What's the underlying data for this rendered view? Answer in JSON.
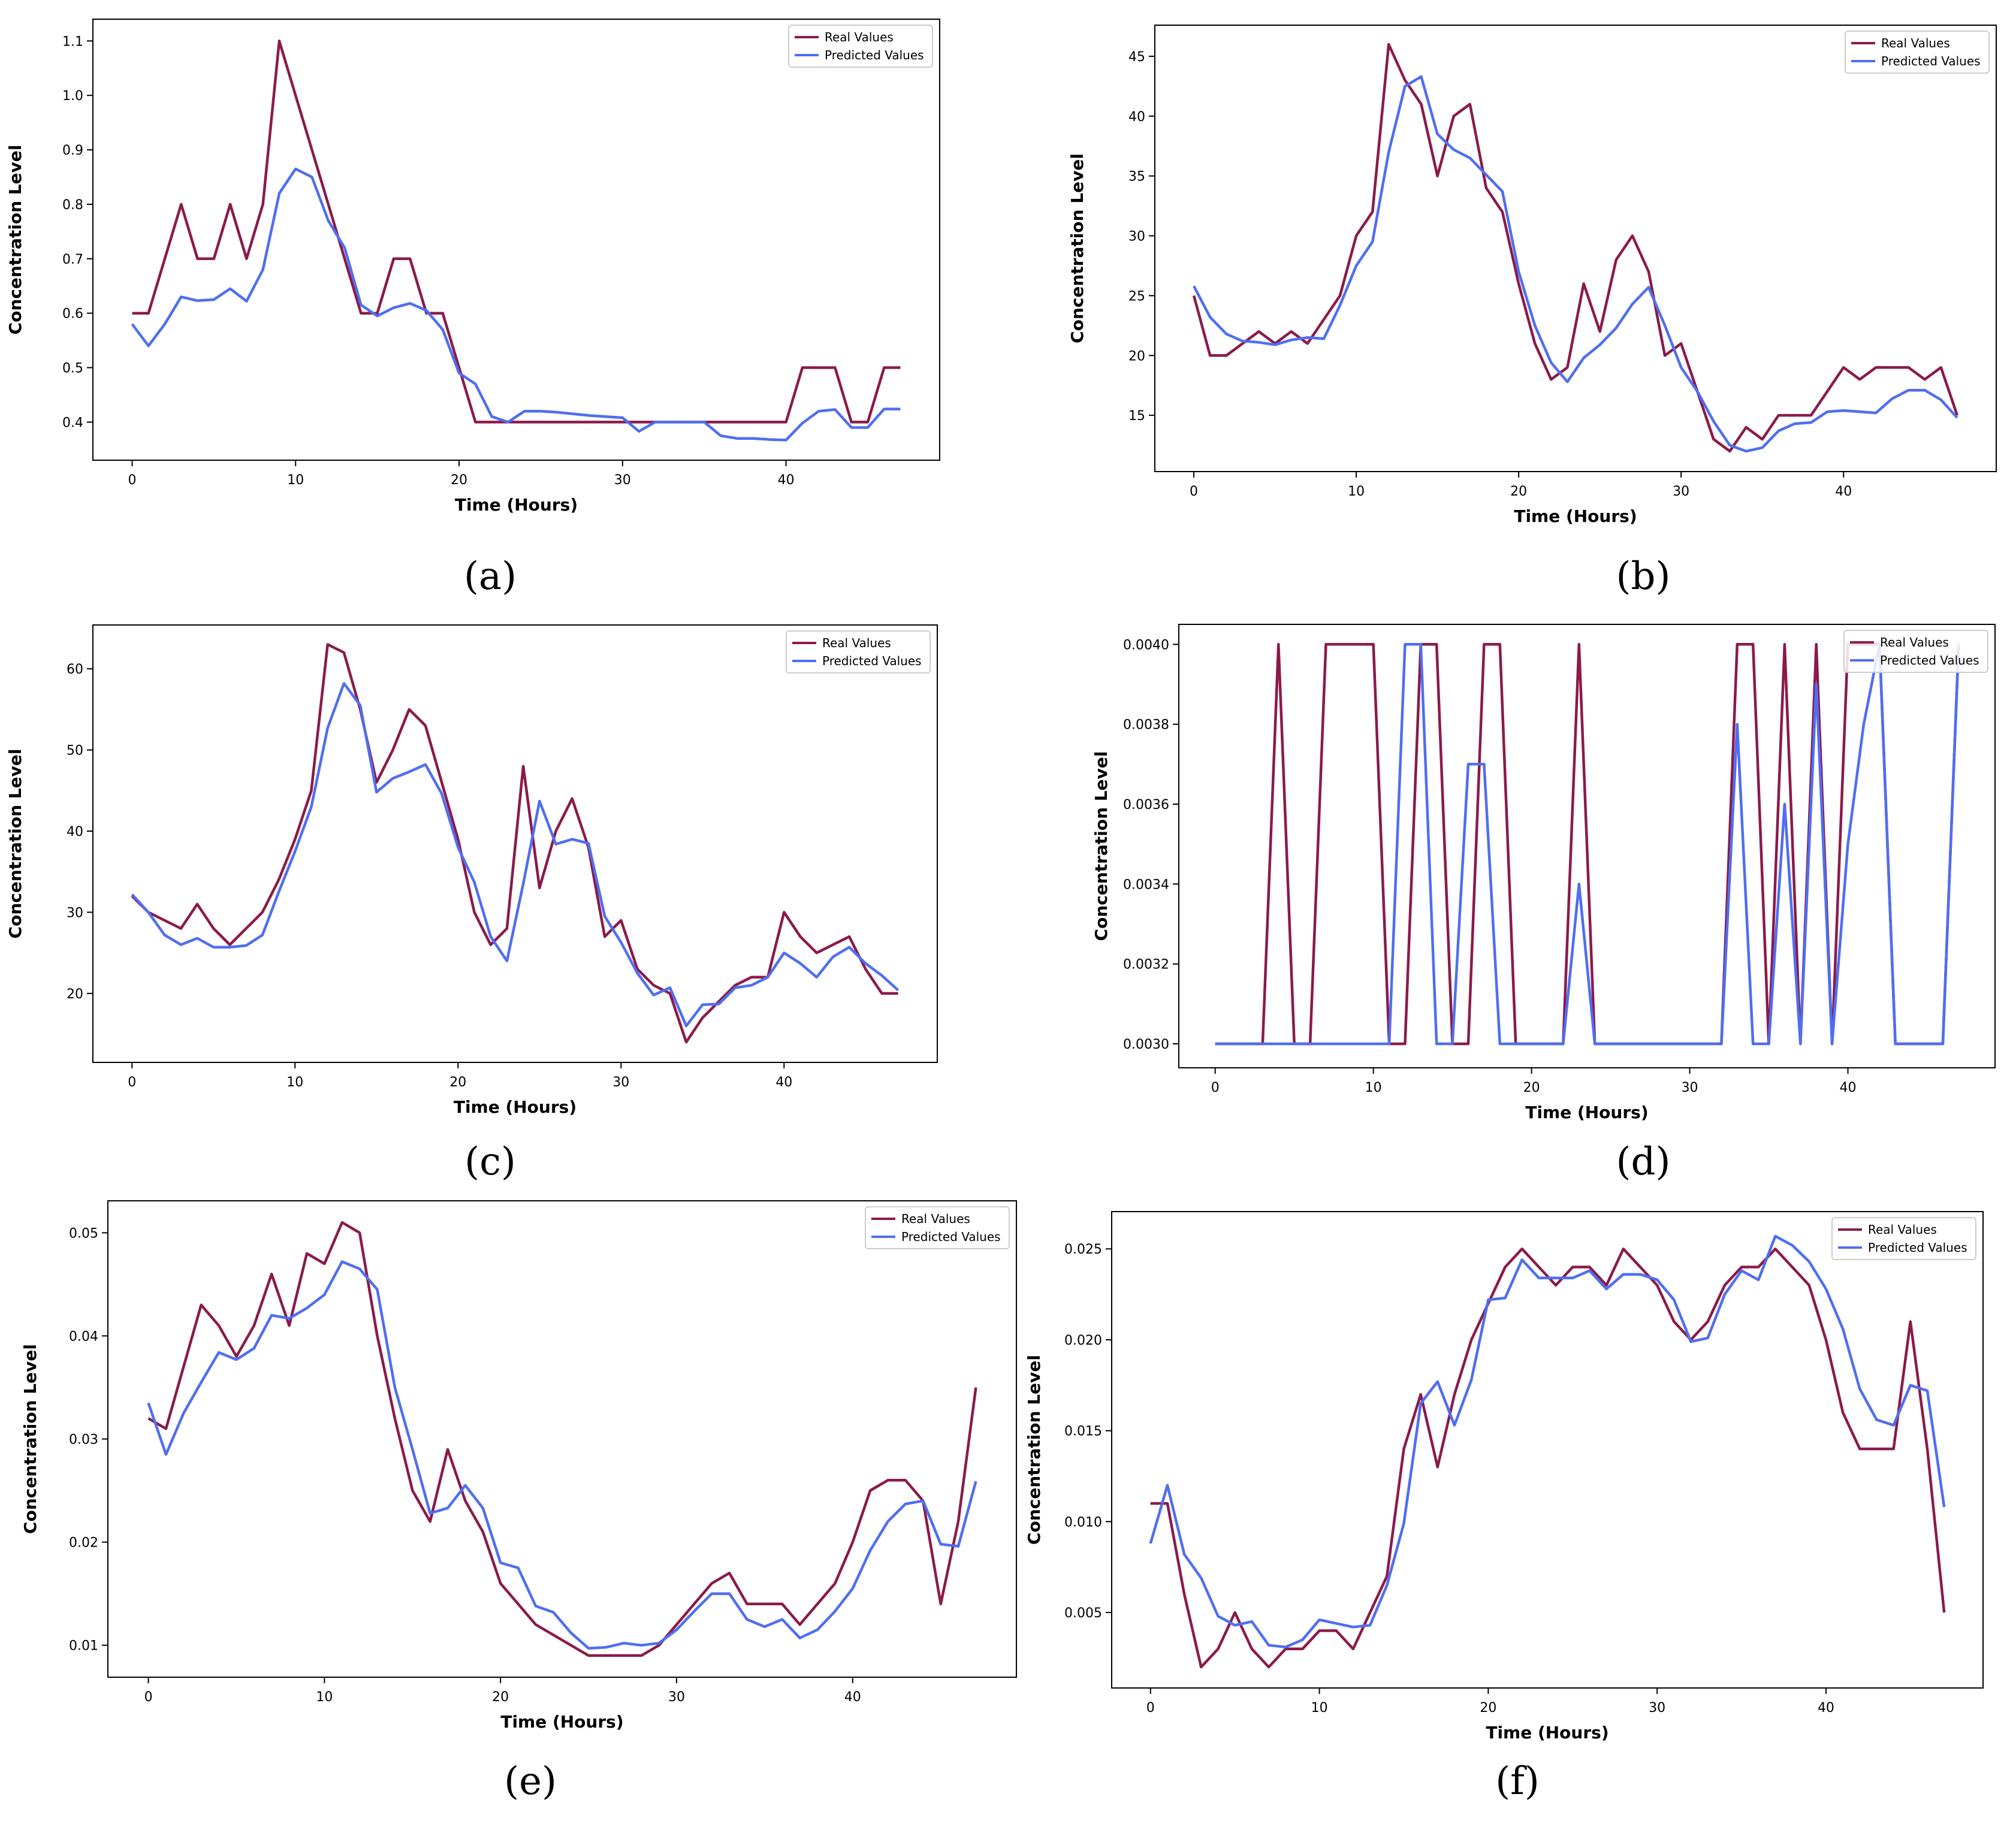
{
  "colors": {
    "real": "#8B1A4A",
    "predicted": "#4F6EF2",
    "axis": "#000000",
    "legend_border": "#cccccc"
  },
  "chart_data": [
    {
      "panel": "a",
      "caption": "(a)",
      "type": "line",
      "xlabel": "Time (Hours)",
      "ylabel": "Concentration Level",
      "xlim": [
        -2.4,
        49.4
      ],
      "ylim": [
        0.33,
        1.14
      ],
      "xticks": [
        0,
        10,
        20,
        30,
        40
      ],
      "xtick_labels": [
        "0",
        "10",
        "20",
        "30",
        "40"
      ],
      "yticks": [
        0.4,
        0.5,
        0.6,
        0.7,
        0.8,
        0.9,
        1.0,
        1.1
      ],
      "ytick_labels": [
        "0.4",
        "0.5",
        "0.6",
        "0.7",
        "0.8",
        "0.9",
        "1.0",
        "1.1"
      ],
      "legend": "top-right",
      "series": [
        {
          "name": "Real Values",
          "key": "real",
          "values": [
            0.6,
            0.6,
            0.7,
            0.8,
            0.7,
            0.7,
            0.8,
            0.7,
            0.8,
            1.1,
            1.0,
            0.9,
            0.8,
            0.7,
            0.6,
            0.6,
            0.7,
            0.7,
            0.6,
            0.6,
            0.5,
            0.4,
            0.4,
            0.4,
            0.4,
            0.4,
            0.4,
            0.4,
            0.4,
            0.4,
            0.4,
            0.4,
            0.4,
            0.4,
            0.4,
            0.4,
            0.4,
            0.4,
            0.4,
            0.4,
            0.4,
            0.5,
            0.5,
            0.5,
            0.4,
            0.4,
            0.5,
            0.5
          ]
        },
        {
          "name": "Predicted Values",
          "key": "predicted",
          "values": [
            0.58,
            0.54,
            0.58,
            0.63,
            0.623,
            0.625,
            0.645,
            0.622,
            0.68,
            0.82,
            0.865,
            0.85,
            0.77,
            0.72,
            0.615,
            0.595,
            0.61,
            0.618,
            0.605,
            0.57,
            0.49,
            0.47,
            0.41,
            0.4,
            0.42,
            0.42,
            0.418,
            0.415,
            0.412,
            0.41,
            0.408,
            0.383,
            0.4,
            0.4,
            0.4,
            0.4,
            0.375,
            0.37,
            0.37,
            0.368,
            0.367,
            0.398,
            0.42,
            0.423,
            0.39,
            0.39,
            0.424,
            0.424
          ]
        }
      ]
    },
    {
      "panel": "b",
      "caption": "(b)",
      "type": "line",
      "xlabel": "Time (Hours)",
      "ylabel": "Concentration Level",
      "xlim": [
        -2.4,
        49.4
      ],
      "ylim": [
        10.3,
        47.6
      ],
      "xticks": [
        0,
        10,
        20,
        30,
        40
      ],
      "xtick_labels": [
        "0",
        "10",
        "20",
        "30",
        "40"
      ],
      "yticks": [
        15,
        20,
        25,
        30,
        35,
        40,
        45
      ],
      "ytick_labels": [
        "15",
        "20",
        "25",
        "30",
        "35",
        "40",
        "45"
      ],
      "legend": "top-right",
      "series": [
        {
          "name": "Real Values",
          "key": "real",
          "values": [
            25,
            20,
            20,
            21,
            22,
            21,
            22,
            21,
            23,
            25,
            30,
            32,
            46,
            43,
            41,
            35,
            40,
            41,
            34,
            32,
            26,
            21,
            18,
            19,
            26,
            22,
            28,
            30,
            27,
            20,
            21,
            17,
            13,
            12,
            14,
            13,
            15,
            15,
            15,
            17,
            19,
            18,
            19,
            19,
            19,
            18,
            19,
            15
          ]
        },
        {
          "name": "Predicted Values",
          "key": "predicted",
          "values": [
            25.8,
            23.2,
            21.8,
            21.2,
            21.1,
            20.9,
            21.3,
            21.5,
            21.4,
            24.2,
            27.5,
            29.5,
            37,
            42.5,
            43.3,
            38.5,
            37.2,
            36.5,
            35.1,
            33.7,
            27,
            22.5,
            19.4,
            17.8,
            19.8,
            20.9,
            22.3,
            24.3,
            25.7,
            22.5,
            19,
            17,
            14.5,
            12.5,
            12,
            12.3,
            13.7,
            14.3,
            14.4,
            15.3,
            15.4,
            15.3,
            15.2,
            16.4,
            17.1,
            17.1,
            16.3,
            14.8
          ]
        }
      ]
    },
    {
      "panel": "c",
      "caption": "(c)",
      "type": "line",
      "xlabel": "Time (Hours)",
      "ylabel": "Concentration Level",
      "xlim": [
        -2.4,
        49.4
      ],
      "ylim": [
        11.5,
        65.4
      ],
      "xticks": [
        0,
        10,
        20,
        30,
        40
      ],
      "xtick_labels": [
        "0",
        "10",
        "20",
        "30",
        "40"
      ],
      "yticks": [
        20,
        30,
        40,
        50,
        60
      ],
      "ytick_labels": [
        "20",
        "30",
        "40",
        "50",
        "60"
      ],
      "legend": "top-right",
      "series": [
        {
          "name": "Real Values",
          "key": "real",
          "values": [
            32,
            30,
            29,
            28,
            31,
            28,
            26,
            28,
            30,
            34,
            39,
            45,
            63,
            62,
            55,
            46,
            50,
            55,
            53,
            46,
            39,
            30,
            26,
            28,
            48,
            33,
            40,
            44,
            38,
            27,
            29,
            23,
            21,
            20,
            14,
            17,
            19,
            21,
            22,
            22,
            30,
            27,
            25,
            26,
            27,
            23,
            20,
            20
          ]
        },
        {
          "name": "Predicted Values",
          "key": "predicted",
          "values": [
            32.2,
            30,
            27.2,
            26,
            26.8,
            25.7,
            25.7,
            25.9,
            27.2,
            32.5,
            37.5,
            43,
            52.7,
            58.2,
            55.5,
            44.8,
            46.5,
            47.3,
            48.2,
            44.6,
            38,
            33.7,
            27,
            24,
            33.5,
            43.7,
            38.4,
            39,
            38.5,
            29.5,
            26.3,
            22.5,
            19.8,
            20.7,
            16,
            18.6,
            18.7,
            20.7,
            21,
            22,
            25,
            23.7,
            22,
            24.5,
            25.7,
            23.7,
            22.2,
            20.4
          ]
        }
      ]
    },
    {
      "panel": "d",
      "caption": "(d)",
      "type": "line",
      "xlabel": "Time (Hours)",
      "ylabel": "Concentration Level",
      "xlim": [
        -2.3,
        49.3
      ],
      "ylim": [
        0.00294,
        0.00405
      ],
      "xticks": [
        0,
        10,
        20,
        30,
        40
      ],
      "xtick_labels": [
        "0",
        "10",
        "20",
        "30",
        "40"
      ],
      "yticks": [
        0.003,
        0.0032,
        0.0034,
        0.0036,
        0.0038,
        0.004
      ],
      "ytick_labels": [
        "0.0030",
        "0.0032",
        "0.0034",
        "0.0036",
        "0.0038",
        "0.0040"
      ],
      "legend": "top-right",
      "series": [
        {
          "name": "Real Values",
          "key": "real",
          "values": [
            0.003,
            0.003,
            0.003,
            0.003,
            0.004,
            0.003,
            0.003,
            0.004,
            0.004,
            0.004,
            0.004,
            0.003,
            0.003,
            0.004,
            0.004,
            0.003,
            0.003,
            0.004,
            0.004,
            0.003,
            0.003,
            0.003,
            0.003,
            0.004,
            0.003,
            0.003,
            0.003,
            0.003,
            0.003,
            0.003,
            0.003,
            0.003,
            0.003,
            0.004,
            0.004,
            0.003,
            0.004,
            0.003,
            0.004,
            0.003,
            0.004,
            0.004,
            0.004,
            0.003,
            0.003,
            0.003,
            0.003,
            0.004
          ]
        },
        {
          "name": "Predicted Values",
          "key": "predicted",
          "values": [
            0.003,
            0.003,
            0.003,
            0.003,
            0.003,
            0.003,
            0.003,
            0.003,
            0.003,
            0.003,
            0.003,
            0.003,
            0.004,
            0.004,
            0.003,
            0.003,
            0.0037,
            0.0037,
            0.003,
            0.003,
            0.003,
            0.003,
            0.003,
            0.0034,
            0.003,
            0.003,
            0.003,
            0.003,
            0.003,
            0.003,
            0.003,
            0.003,
            0.003,
            0.0038,
            0.003,
            0.003,
            0.0036,
            0.003,
            0.0039,
            0.003,
            0.0035,
            0.0038,
            0.004,
            0.003,
            0.003,
            0.003,
            0.003,
            0.004
          ]
        }
      ]
    },
    {
      "panel": "e",
      "caption": "(e)",
      "type": "line",
      "xlabel": "Time (Hours)",
      "ylabel": "Concentration Level",
      "xlim": [
        -2.3,
        49.3
      ],
      "ylim": [
        0.0069,
        0.0531
      ],
      "xticks": [
        0,
        10,
        20,
        30,
        40
      ],
      "xtick_labels": [
        "0",
        "10",
        "20",
        "30",
        "40"
      ],
      "yticks": [
        0.01,
        0.02,
        0.03,
        0.04,
        0.05
      ],
      "ytick_labels": [
        "0.01",
        "0.02",
        "0.03",
        "0.04",
        "0.05"
      ],
      "legend": "top-right",
      "series": [
        {
          "name": "Real Values",
          "key": "real",
          "values": [
            0.032,
            0.031,
            0.037,
            0.043,
            0.041,
            0.038,
            0.041,
            0.046,
            0.041,
            0.048,
            0.047,
            0.051,
            0.05,
            0.04,
            0.032,
            0.025,
            0.022,
            0.029,
            0.024,
            0.021,
            0.016,
            0.014,
            0.012,
            0.011,
            0.01,
            0.009,
            0.009,
            0.009,
            0.009,
            0.01,
            0.012,
            0.014,
            0.016,
            0.017,
            0.014,
            0.014,
            0.014,
            0.012,
            0.014,
            0.016,
            0.02,
            0.025,
            0.026,
            0.026,
            0.024,
            0.014,
            0.022,
            0.035
          ]
        },
        {
          "name": "Predicted Values",
          "key": "predicted",
          "values": [
            0.0335,
            0.0285,
            0.0325,
            0.0355,
            0.0384,
            0.0377,
            0.0388,
            0.042,
            0.0417,
            0.0427,
            0.044,
            0.0472,
            0.0465,
            0.0445,
            0.035,
            0.029,
            0.0228,
            0.0233,
            0.0255,
            0.0233,
            0.018,
            0.0175,
            0.0138,
            0.0132,
            0.0112,
            0.0097,
            0.0098,
            0.0102,
            0.01,
            0.0102,
            0.0115,
            0.0133,
            0.015,
            0.015,
            0.0125,
            0.0118,
            0.0125,
            0.0107,
            0.0115,
            0.0133,
            0.0155,
            0.0192,
            0.022,
            0.0237,
            0.024,
            0.0198,
            0.0196,
            0.0259
          ]
        }
      ]
    },
    {
      "panel": "f",
      "caption": "(f)",
      "type": "line",
      "xlabel": "Time (Hours)",
      "ylabel": "Concentration Level",
      "xlim": [
        -2.3,
        49.3
      ],
      "ylim": [
        0.00085,
        0.02705
      ],
      "xticks": [
        0,
        10,
        20,
        30,
        40
      ],
      "xtick_labels": [
        "0",
        "10",
        "20",
        "30",
        "40"
      ],
      "yticks": [
        0.005,
        0.01,
        0.015,
        0.02,
        0.025
      ],
      "ytick_labels": [
        "0.005",
        "0.010",
        "0.015",
        "0.020",
        "0.025"
      ],
      "legend": "top-right",
      "series": [
        {
          "name": "Real Values",
          "key": "real",
          "values": [
            0.011,
            0.011,
            0.006,
            0.002,
            0.003,
            0.005,
            0.003,
            0.002,
            0.003,
            0.003,
            0.004,
            0.004,
            0.003,
            0.005,
            0.007,
            0.014,
            0.017,
            0.013,
            0.017,
            0.02,
            0.022,
            0.024,
            0.025,
            0.024,
            0.023,
            0.024,
            0.024,
            0.023,
            0.025,
            0.024,
            0.023,
            0.021,
            0.02,
            0.021,
            0.023,
            0.024,
            0.024,
            0.025,
            0.024,
            0.023,
            0.02,
            0.016,
            0.014,
            0.014,
            0.014,
            0.021,
            0.014,
            0.005
          ]
        },
        {
          "name": "Predicted Values",
          "key": "predicted",
          "values": [
            0.0088,
            0.012,
            0.0082,
            0.0069,
            0.0048,
            0.0043,
            0.0045,
            0.0032,
            0.0031,
            0.0035,
            0.0046,
            0.0044,
            0.0042,
            0.0043,
            0.0065,
            0.0099,
            0.0165,
            0.0177,
            0.0153,
            0.0178,
            0.0222,
            0.0223,
            0.0244,
            0.0234,
            0.0234,
            0.0234,
            0.0238,
            0.0228,
            0.0236,
            0.0236,
            0.0233,
            0.0222,
            0.0199,
            0.0201,
            0.0225,
            0.0238,
            0.0233,
            0.0257,
            0.0252,
            0.0243,
            0.0228,
            0.0206,
            0.0173,
            0.0156,
            0.0153,
            0.0175,
            0.0172,
            0.0108
          ]
        }
      ]
    }
  ]
}
